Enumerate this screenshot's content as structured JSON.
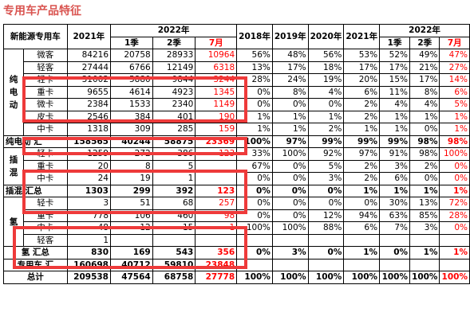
{
  "title": "专用车产品特征",
  "header": {
    "corner": "新能源专用车",
    "y2021": "2021年",
    "y2022": "2022年",
    "q1": "1季",
    "q2": "2季",
    "jul": "7月",
    "y2018": "2018年",
    "y2019": "2019年",
    "y2020": "2020年",
    "y2021s": "2021年",
    "y2022s": "2022年",
    "q1s": "1季",
    "q2s": "2季",
    "juls": "7月"
  },
  "categories": {
    "pure": "纯电动",
    "hybrid": "插混",
    "hydrogen": "氢"
  },
  "rows": [
    {
      "label": "微客",
      "v": [
        "84216",
        "20758",
        "28933",
        "10964"
      ],
      "s": [
        "56%",
        "48%",
        "56%",
        "53%",
        "52%",
        "49%",
        "47%"
      ]
    },
    {
      "label": "轻客",
      "v": [
        "27444",
        "6766",
        "12149",
        "6318"
      ],
      "s": [
        "13%",
        "17%",
        "18%",
        "17%",
        "17%",
        "21%",
        "27%"
      ]
    },
    {
      "label": "轻卡",
      "v": [
        "31002",
        "5880",
        "9844",
        "3244"
      ],
      "s": [
        "28%",
        "24%",
        "19%",
        "20%",
        "15%",
        "17%",
        "14%"
      ]
    },
    {
      "label": "重卡",
      "v": [
        "9655",
        "4614",
        "4923",
        "1345"
      ],
      "s": [
        "0%",
        "8%",
        "4%",
        "6%",
        "11%",
        "8%",
        "6%"
      ]
    },
    {
      "label": "微卡",
      "v": [
        "2384",
        "1533",
        "2340",
        "1149"
      ],
      "s": [
        "0%",
        "0%",
        "0%",
        "2%",
        "4%",
        "4%",
        "5%"
      ]
    },
    {
      "label": "皮卡",
      "v": [
        "2546",
        "384",
        "401",
        "190"
      ],
      "s": [
        "1%",
        "1%",
        "1%",
        "2%",
        "1%",
        "1%",
        "1%"
      ]
    },
    {
      "label": "中卡",
      "v": [
        "1318",
        "309",
        "285",
        "159"
      ],
      "s": [
        "1%",
        "1%",
        "2%",
        "1%",
        "1%",
        "0%",
        "1%"
      ]
    },
    {
      "label": "纯电动 汇",
      "v": [
        "158565",
        "40244",
        "58875",
        "23369"
      ],
      "s": [
        "100%",
        "97%",
        "99%",
        "99%",
        "99%",
        "98%",
        "98%"
      ]
    },
    {
      "label": "轻卡",
      "v": [
        "1259",
        "272",
        "386",
        "123"
      ],
      "s": [
        "33%",
        "100%",
        "92%",
        "97%",
        "91%",
        "98%",
        "100%"
      ]
    },
    {
      "label": "重卡",
      "v": [
        "20",
        "8",
        "5",
        ""
      ],
      "s": [
        "67%",
        "0%",
        "5%",
        "2%",
        "3%",
        "2%",
        "0%"
      ]
    },
    {
      "label": "中卡",
      "v": [
        "24",
        "19",
        "1",
        ""
      ],
      "s": [
        "0%",
        "0%",
        "3%",
        "2%",
        "6%",
        "0%",
        "0%"
      ]
    },
    {
      "label": "插混 汇总",
      "v": [
        "1303",
        "299",
        "392",
        "123"
      ],
      "s": [
        "0%",
        "0%",
        "0%",
        "1%",
        "1%",
        "1%",
        "1%"
      ]
    },
    {
      "label": "轻卡",
      "v": [
        "3",
        "51",
        "68",
        "257"
      ],
      "s": [
        "0%",
        "0%",
        "0%",
        "0%",
        "30%",
        "13%",
        "72%"
      ]
    },
    {
      "label": "重卡",
      "v": [
        "778",
        "106",
        "460",
        "98"
      ],
      "s": [
        "0%",
        "0%",
        "12%",
        "94%",
        "63%",
        "85%",
        "28%"
      ]
    },
    {
      "label": "中卡",
      "v": [
        "48",
        "12",
        "15",
        "1"
      ],
      "s": [
        "100%",
        "100%",
        "88%",
        "6%",
        "7%",
        "3%",
        "0%"
      ]
    },
    {
      "label": "轻客",
      "v": [
        "1",
        "",
        "",
        ""
      ],
      "s": [
        "",
        "",
        "",
        "",
        "",
        "",
        ""
      ]
    },
    {
      "label": "氢 汇总",
      "v": [
        "830",
        "169",
        "543",
        "356"
      ],
      "s": [
        "0%",
        "3%",
        "0%",
        "1%",
        "0%",
        "1%",
        "1%"
      ]
    },
    {
      "label": "专用车 汇",
      "v": [
        "160698",
        "40712",
        "59810",
        "23848"
      ],
      "s": [
        "",
        "",
        "",
        "",
        "",
        "",
        ""
      ]
    },
    {
      "label": "总计",
      "v": [
        "209538",
        "47564",
        "68758",
        "27778"
      ],
      "s": [
        "100%",
        "100%",
        "100%",
        "100%",
        "100%",
        "100%",
        "100%"
      ]
    }
  ],
  "colors": {
    "accent": "#ff0000",
    "box": "#ee3a3a",
    "title": "#d9534f"
  }
}
